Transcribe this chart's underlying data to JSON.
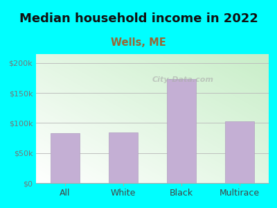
{
  "title": "Median household income in 2022",
  "subtitle": "Wells, ME",
  "categories": [
    "All",
    "White",
    "Black",
    "Multirace"
  ],
  "values": [
    83000,
    84000,
    173000,
    103000
  ],
  "bar_color": "#c4afd4",
  "bar_edge_color": "#b09fc0",
  "title_fontsize": 13,
  "subtitle_fontsize": 10.5,
  "subtitle_color": "#996633",
  "outer_bg_color": "#00FFFF",
  "plot_bg_color_topleft": "#c8eec8",
  "plot_bg_color_bottomright": "#f0fff0",
  "yticks": [
    0,
    50000,
    100000,
    150000,
    200000
  ],
  "ytick_labels": [
    "$0",
    "$50k",
    "$100k",
    "$150k",
    "$200k"
  ],
  "ylim": [
    0,
    215000
  ],
  "watermark": "City-Data.com",
  "tick_color": "#777777",
  "axis_label_color": "#444444"
}
